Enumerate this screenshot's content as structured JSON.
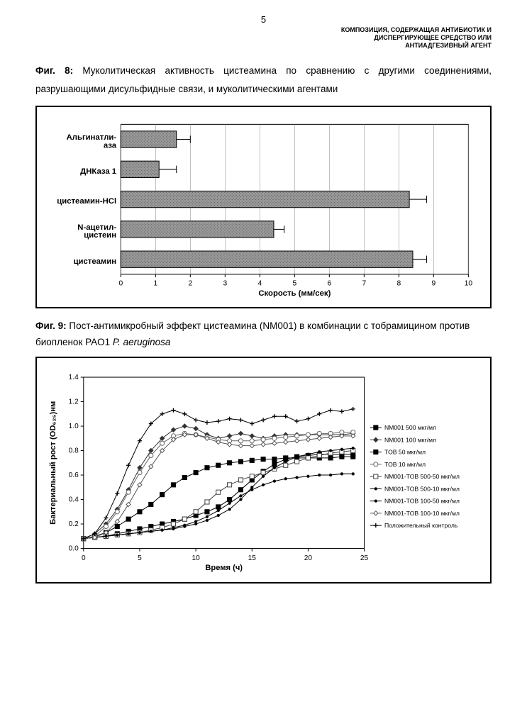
{
  "page_number": "5",
  "header": {
    "line1": "КОМПОЗИЦИЯ, СОДЕРЖАЩАЯ АНТИБИОТИК И",
    "line2": "ДИСПЕРГИРУЮЩЕЕ СРЕДСТВО ИЛИ",
    "line3": "АНТИАДГЕЗИВНЫЙ АГЕНТ"
  },
  "fig8": {
    "label": "Фиг. 8:",
    "caption": "Муколитическая активность цистеамина по сравнению с другими соединениями, разрушающими дисульфидные связи, и муколитическими агентами",
    "type": "bar",
    "xlabel": "Скорость (мм/сек)",
    "xlim": [
      0,
      10
    ],
    "xtick_step": 1,
    "categories": [
      {
        "label_lines": [
          "Альгинатли-",
          "аза"
        ],
        "value": 1.6,
        "err": 0.4
      },
      {
        "label_lines": [
          "ДНКаза 1"
        ],
        "value": 1.1,
        "err": 0.5
      },
      {
        "label_lines": [
          "цистеамин-HCl"
        ],
        "value": 8.3,
        "err": 0.5
      },
      {
        "label_lines": [
          "N-ацетил-",
          "цистеин"
        ],
        "value": 4.4,
        "err": 0.3
      },
      {
        "label_lines": [
          "цистеамин"
        ],
        "value": 8.4,
        "err": 0.4
      }
    ],
    "bar_fill": "#9a9a9a",
    "bar_pattern": "dots",
    "bar_stroke": "#000000",
    "plot_bg": "#ffffff",
    "grid_color": "#888888"
  },
  "fig9": {
    "label": "Фиг. 9:",
    "caption_pre": "Пост-антимикробный эффект цистеамина (NM001) в комбинации с тобрамицином против биопленок PAO1 ",
    "caption_italic": "P. aeruginosa",
    "type": "line",
    "xlabel": "Время (ч)",
    "ylabel": "Бактериальный рост (OD₆₂₅)нм",
    "xlim": [
      0,
      25
    ],
    "xtick_step": 5,
    "ylim": [
      0,
      1.4
    ],
    "ytick_step": 0.2,
    "series": [
      {
        "name": "NM001 500 мкг/мл",
        "marker": "filled-square",
        "color": "#000000",
        "points": [
          [
            0,
            0.08
          ],
          [
            1,
            0.1
          ],
          [
            2,
            0.13
          ],
          [
            3,
            0.18
          ],
          [
            4,
            0.24
          ],
          [
            5,
            0.3
          ],
          [
            6,
            0.36
          ],
          [
            7,
            0.44
          ],
          [
            8,
            0.52
          ],
          [
            9,
            0.58
          ],
          [
            10,
            0.62
          ],
          [
            11,
            0.66
          ],
          [
            12,
            0.68
          ],
          [
            13,
            0.7
          ],
          [
            14,
            0.71
          ],
          [
            15,
            0.72
          ],
          [
            16,
            0.73
          ],
          [
            17,
            0.73
          ],
          [
            18,
            0.74
          ],
          [
            19,
            0.74
          ],
          [
            20,
            0.74
          ],
          [
            21,
            0.74
          ],
          [
            22,
            0.74
          ],
          [
            23,
            0.75
          ],
          [
            24,
            0.75
          ]
        ]
      },
      {
        "name": "NM001 100 мкг/мл",
        "marker": "filled-diamond",
        "color": "#333333",
        "points": [
          [
            0,
            0.08
          ],
          [
            1,
            0.12
          ],
          [
            2,
            0.2
          ],
          [
            3,
            0.32
          ],
          [
            4,
            0.48
          ],
          [
            5,
            0.66
          ],
          [
            6,
            0.8
          ],
          [
            7,
            0.9
          ],
          [
            8,
            0.97
          ],
          [
            9,
            1.0
          ],
          [
            10,
            0.98
          ],
          [
            11,
            0.93
          ],
          [
            12,
            0.9
          ],
          [
            13,
            0.92
          ],
          [
            14,
            0.94
          ],
          [
            15,
            0.92
          ],
          [
            16,
            0.9
          ],
          [
            17,
            0.92
          ],
          [
            18,
            0.93
          ],
          [
            19,
            0.93
          ],
          [
            20,
            0.93
          ],
          [
            21,
            0.93
          ],
          [
            22,
            0.93
          ],
          [
            23,
            0.93
          ],
          [
            24,
            0.94
          ]
        ]
      },
      {
        "name": "TOB 50 мкг/мл",
        "marker": "filled-square",
        "color": "#000000",
        "points": [
          [
            0,
            0.08
          ],
          [
            1,
            0.09
          ],
          [
            2,
            0.1
          ],
          [
            3,
            0.12
          ],
          [
            4,
            0.14
          ],
          [
            5,
            0.16
          ],
          [
            6,
            0.18
          ],
          [
            7,
            0.2
          ],
          [
            8,
            0.22
          ],
          [
            9,
            0.24
          ],
          [
            10,
            0.27
          ],
          [
            11,
            0.3
          ],
          [
            12,
            0.34
          ],
          [
            13,
            0.4
          ],
          [
            14,
            0.48
          ],
          [
            15,
            0.56
          ],
          [
            16,
            0.63
          ],
          [
            17,
            0.69
          ],
          [
            18,
            0.73
          ],
          [
            19,
            0.75
          ],
          [
            20,
            0.76
          ],
          [
            21,
            0.77
          ],
          [
            22,
            0.77
          ],
          [
            23,
            0.77
          ],
          [
            24,
            0.77
          ]
        ]
      },
      {
        "name": "TOB 10 мкг/мл",
        "marker": "open-circle",
        "color": "#666666",
        "points": [
          [
            0,
            0.08
          ],
          [
            1,
            0.1
          ],
          [
            2,
            0.18
          ],
          [
            3,
            0.3
          ],
          [
            4,
            0.46
          ],
          [
            5,
            0.62
          ],
          [
            6,
            0.76
          ],
          [
            7,
            0.86
          ],
          [
            8,
            0.92
          ],
          [
            9,
            0.94
          ],
          [
            10,
            0.93
          ],
          [
            11,
            0.91
          ],
          [
            12,
            0.89
          ],
          [
            13,
            0.88
          ],
          [
            14,
            0.88
          ],
          [
            15,
            0.88
          ],
          [
            16,
            0.89
          ],
          [
            17,
            0.9
          ],
          [
            18,
            0.91
          ],
          [
            19,
            0.92
          ],
          [
            20,
            0.93
          ],
          [
            21,
            0.94
          ],
          [
            22,
            0.94
          ],
          [
            23,
            0.95
          ],
          [
            24,
            0.95
          ]
        ]
      },
      {
        "name": "NM001-TOB 500-50 мкг/мл",
        "marker": "open-square",
        "color": "#444444",
        "points": [
          [
            0,
            0.08
          ],
          [
            1,
            0.09
          ],
          [
            2,
            0.1
          ],
          [
            3,
            0.11
          ],
          [
            4,
            0.12
          ],
          [
            5,
            0.13
          ],
          [
            6,
            0.15
          ],
          [
            7,
            0.17
          ],
          [
            8,
            0.2
          ],
          [
            9,
            0.24
          ],
          [
            10,
            0.3
          ],
          [
            11,
            0.38
          ],
          [
            12,
            0.46
          ],
          [
            13,
            0.52
          ],
          [
            14,
            0.56
          ],
          [
            15,
            0.59
          ],
          [
            16,
            0.62
          ],
          [
            17,
            0.65
          ],
          [
            18,
            0.68
          ],
          [
            19,
            0.71
          ],
          [
            20,
            0.74
          ],
          [
            21,
            0.76
          ],
          [
            22,
            0.78
          ],
          [
            23,
            0.79
          ],
          [
            24,
            0.8
          ]
        ]
      },
      {
        "name": "NM001-TOB 500-10 мкг/мл",
        "marker": "small-dot",
        "color": "#000000",
        "points": [
          [
            0,
            0.08
          ],
          [
            1,
            0.09
          ],
          [
            2,
            0.1
          ],
          [
            3,
            0.11
          ],
          [
            4,
            0.12
          ],
          [
            5,
            0.13
          ],
          [
            6,
            0.14
          ],
          [
            7,
            0.15
          ],
          [
            8,
            0.16
          ],
          [
            9,
            0.18
          ],
          [
            10,
            0.2
          ],
          [
            11,
            0.23
          ],
          [
            12,
            0.27
          ],
          [
            13,
            0.32
          ],
          [
            14,
            0.4
          ],
          [
            15,
            0.5
          ],
          [
            16,
            0.59
          ],
          [
            17,
            0.66
          ],
          [
            18,
            0.71
          ],
          [
            19,
            0.75
          ],
          [
            20,
            0.77
          ],
          [
            21,
            0.79
          ],
          [
            22,
            0.8
          ],
          [
            23,
            0.81
          ],
          [
            24,
            0.82
          ]
        ]
      },
      {
        "name": "NM001-TOB 100-50 мкг/мл",
        "marker": "small-dot",
        "color": "#000000",
        "points": [
          [
            0,
            0.08
          ],
          [
            1,
            0.09
          ],
          [
            2,
            0.1
          ],
          [
            3,
            0.11
          ],
          [
            4,
            0.12
          ],
          [
            5,
            0.13
          ],
          [
            6,
            0.14
          ],
          [
            7,
            0.15
          ],
          [
            8,
            0.17
          ],
          [
            9,
            0.19
          ],
          [
            10,
            0.22
          ],
          [
            11,
            0.26
          ],
          [
            12,
            0.31
          ],
          [
            13,
            0.37
          ],
          [
            14,
            0.43
          ],
          [
            15,
            0.48
          ],
          [
            16,
            0.52
          ],
          [
            17,
            0.55
          ],
          [
            18,
            0.57
          ],
          [
            19,
            0.58
          ],
          [
            20,
            0.59
          ],
          [
            21,
            0.6
          ],
          [
            22,
            0.6
          ],
          [
            23,
            0.61
          ],
          [
            24,
            0.61
          ]
        ]
      },
      {
        "name": "NM001-TOB 100-10 мкг/мл",
        "marker": "open-diamond",
        "color": "#555555",
        "points": [
          [
            0,
            0.08
          ],
          [
            1,
            0.09
          ],
          [
            2,
            0.13
          ],
          [
            3,
            0.22
          ],
          [
            4,
            0.36
          ],
          [
            5,
            0.52
          ],
          [
            6,
            0.67
          ],
          [
            7,
            0.8
          ],
          [
            8,
            0.89
          ],
          [
            9,
            0.93
          ],
          [
            10,
            0.93
          ],
          [
            11,
            0.9
          ],
          [
            12,
            0.87
          ],
          [
            13,
            0.85
          ],
          [
            14,
            0.84
          ],
          [
            15,
            0.84
          ],
          [
            16,
            0.85
          ],
          [
            17,
            0.86
          ],
          [
            18,
            0.87
          ],
          [
            19,
            0.88
          ],
          [
            20,
            0.89
          ],
          [
            21,
            0.9
          ],
          [
            22,
            0.91
          ],
          [
            23,
            0.92
          ],
          [
            24,
            0.92
          ]
        ]
      },
      {
        "name": "Положительный контроль",
        "marker": "plus",
        "color": "#000000",
        "points": [
          [
            0,
            0.08
          ],
          [
            1,
            0.12
          ],
          [
            2,
            0.25
          ],
          [
            3,
            0.45
          ],
          [
            4,
            0.68
          ],
          [
            5,
            0.88
          ],
          [
            6,
            1.02
          ],
          [
            7,
            1.1
          ],
          [
            8,
            1.13
          ],
          [
            9,
            1.1
          ],
          [
            10,
            1.05
          ],
          [
            11,
            1.03
          ],
          [
            12,
            1.04
          ],
          [
            13,
            1.06
          ],
          [
            14,
            1.05
          ],
          [
            15,
            1.02
          ],
          [
            16,
            1.05
          ],
          [
            17,
            1.08
          ],
          [
            18,
            1.08
          ],
          [
            19,
            1.04
          ],
          [
            20,
            1.06
          ],
          [
            21,
            1.1
          ],
          [
            22,
            1.13
          ],
          [
            23,
            1.12
          ],
          [
            24,
            1.14
          ]
        ]
      }
    ]
  }
}
